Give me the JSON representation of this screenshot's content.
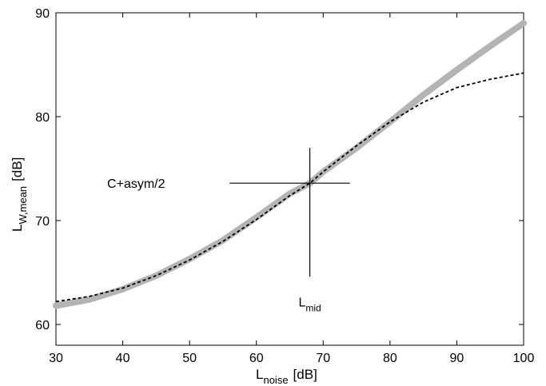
{
  "chart_data": {
    "type": "line",
    "xlabel": {
      "main": "L",
      "sub": "noise",
      "unit": "[dB]"
    },
    "ylabel": {
      "main": "L",
      "sub": "W,mean",
      "unit": "[dB]"
    },
    "xlim": [
      30,
      100
    ],
    "ylim": [
      58,
      90
    ],
    "xticks": [
      30,
      40,
      50,
      60,
      70,
      80,
      90,
      100
    ],
    "yticks": [
      60,
      70,
      80,
      90
    ],
    "grid": false,
    "legend": "none",
    "series": [
      {
        "style": "solid-thick-gray",
        "color": "#b4b4b4",
        "x": [
          30,
          35,
          40,
          45,
          50,
          55,
          60,
          65,
          68,
          70,
          75,
          80,
          85,
          90,
          95,
          100
        ],
        "y": [
          61.8,
          62.4,
          63.4,
          64.7,
          66.3,
          68.1,
          70.3,
          72.6,
          73.6,
          74.7,
          77.0,
          79.5,
          82.1,
          84.5,
          86.8,
          89.0
        ]
      },
      {
        "style": "dashed-thin-black",
        "color": "#000000",
        "x": [
          30,
          35,
          40,
          45,
          50,
          55,
          60,
          65,
          68,
          70,
          75,
          80,
          85,
          90,
          95,
          100
        ],
        "y": [
          62.2,
          62.7,
          63.5,
          64.7,
          66.2,
          68.0,
          70.1,
          72.4,
          73.6,
          74.7,
          77.2,
          79.5,
          81.4,
          82.8,
          83.6,
          84.2
        ]
      }
    ],
    "annotations": [
      {
        "id": "c-asym",
        "text": "C+asym/2",
        "x": 42,
        "y": 73.6
      },
      {
        "id": "l-mid",
        "main": "L",
        "sub": "mid",
        "x": 68,
        "y": 62.2
      }
    ],
    "crosshair": {
      "x": 68,
      "y": 73.6,
      "x_range": [
        56,
        74
      ],
      "y_range": [
        64.6,
        77.0
      ]
    }
  }
}
